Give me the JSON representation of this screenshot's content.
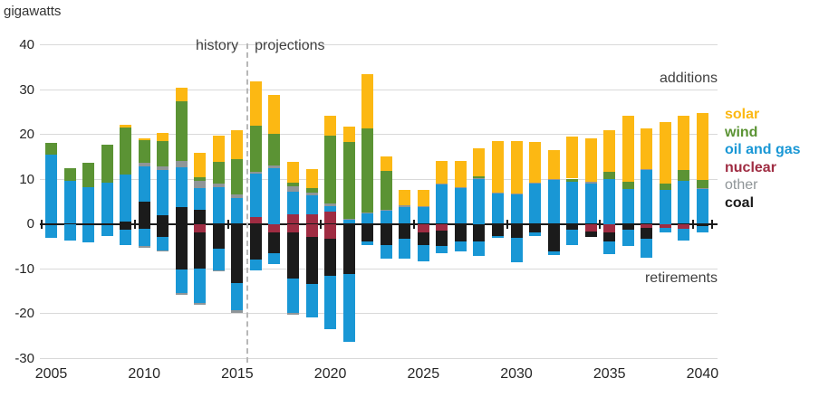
{
  "unit_label": "gigawatts",
  "annotations": {
    "history": "history",
    "projections": "projections",
    "additions": "additions",
    "retirements": "retirements"
  },
  "legend": [
    {
      "label": "solar",
      "color": "#fcb813",
      "bold": true
    },
    {
      "label": "wind",
      "color": "#5b9334",
      "bold": true
    },
    {
      "label": "oil and gas",
      "color": "#1997d5",
      "bold": true
    },
    {
      "label": "nuclear",
      "color": "#9f2c42",
      "bold": true
    },
    {
      "label": "other",
      "color": "#8f9598",
      "bold": false
    },
    {
      "label": "coal",
      "color": "#1b1b1b",
      "bold": true
    }
  ],
  "chart_data": {
    "type": "bar",
    "stacked": true,
    "title": "",
    "ylabel": "gigawatts",
    "ylim": [
      -30,
      40
    ],
    "y_ticks": [
      40,
      30,
      20,
      10,
      0,
      -10,
      -20,
      -30
    ],
    "x_start_year": 2005,
    "x_end_year": 2040,
    "x_tick_labels": [
      "2005",
      "2010",
      "2015",
      "2020",
      "2025",
      "2030",
      "2035",
      "2040"
    ],
    "history_projection_boundary": 2015.5,
    "series_colors": {
      "coal": "#1b1b1b",
      "nuclear": "#9f2c42",
      "oil_and_gas": "#1997d5",
      "other": "#8f9598",
      "wind": "#5b9334",
      "solar": "#fcb813"
    },
    "additions_stack_order": [
      "coal",
      "nuclear",
      "oil_and_gas",
      "other",
      "wind",
      "solar"
    ],
    "retirements_stack_order": [
      "nuclear",
      "coal",
      "oil_and_gas",
      "other"
    ],
    "additions": {
      "coal": [
        0,
        0,
        0,
        0,
        0.5,
        5,
        2,
        3.7,
        3.2,
        0,
        0,
        0,
        0,
        0,
        0,
        0,
        0,
        0,
        0,
        0,
        0,
        0,
        0,
        0,
        0,
        0,
        0,
        0,
        0,
        0,
        0,
        0,
        0,
        0,
        0,
        0
      ],
      "nuclear": [
        0,
        0,
        0,
        0,
        0,
        0,
        0,
        0,
        0,
        0,
        0,
        1.5,
        0,
        2.2,
        2.2,
        2.8,
        0,
        0,
        0,
        0,
        0,
        0,
        0,
        0,
        0,
        0,
        0,
        0,
        0,
        0,
        0,
        0,
        0,
        0,
        0,
        0
      ],
      "oil_and_gas": [
        15.5,
        9.5,
        8.1,
        9.2,
        10.5,
        7.8,
        10,
        9,
        4.8,
        8.1,
        5.8,
        9.7,
        12.5,
        5,
        4.2,
        1.2,
        1,
        2.3,
        3,
        3.8,
        3.7,
        8.7,
        7.9,
        10,
        6.7,
        6.5,
        9,
        9.7,
        9.3,
        9,
        10,
        7.7,
        12,
        7.5,
        9.5,
        7.8
      ],
      "other": [
        0,
        0,
        0,
        0,
        0,
        0.9,
        0.8,
        1.3,
        1.5,
        0.9,
        0.7,
        0.5,
        0.5,
        1.2,
        0.5,
        0.6,
        0.2,
        0.2,
        0.2,
        0.4,
        0.3,
        0.2,
        0.2,
        0.2,
        0.2,
        0.2,
        0.2,
        0.2,
        0,
        0.3,
        0,
        0,
        0.3,
        0,
        0,
        0.2
      ],
      "wind": [
        2.5,
        3,
        5.5,
        8.5,
        10.6,
        5,
        5.7,
        13.3,
        0.9,
        4.9,
        7.9,
        10.2,
        7.1,
        0.8,
        1,
        15,
        17,
        18.8,
        8.6,
        0,
        0,
        0,
        0,
        0.4,
        0,
        0,
        0,
        0,
        0.8,
        0,
        1.7,
        1.7,
        0,
        1.5,
        2.5,
        1.7
      ],
      "solar": [
        0,
        0,
        0,
        0,
        0.5,
        0.3,
        1.9,
        3.2,
        5.5,
        5.8,
        6.5,
        10,
        8.7,
        4.6,
        4.3,
        4.6,
        3.6,
        12.2,
        3.3,
        3.3,
        3.5,
        5.2,
        6,
        6.2,
        11.6,
        11.8,
        9.1,
        6.6,
        9.4,
        9.7,
        9.3,
        14.7,
        9,
        13.7,
        12.1,
        15.1
      ]
    },
    "retirements": {
      "nuclear": [
        0,
        0,
        0,
        0,
        0,
        0,
        0,
        0,
        -2,
        0,
        0,
        0,
        -2,
        -2,
        -3,
        -3.3,
        0,
        0,
        0,
        0,
        -1.9,
        -1.5,
        0,
        0,
        0,
        0,
        0,
        0,
        0,
        -1.7,
        -2,
        0,
        -1,
        -1,
        -1.2,
        0
      ],
      "coal": [
        -0.3,
        0,
        -0.3,
        -0.4,
        -1.3,
        -1.2,
        -3,
        -10.3,
        -8,
        -5.5,
        -13.3,
        -8,
        -4.5,
        -10.3,
        -10.5,
        -8.3,
        -11.3,
        -4,
        -4.7,
        -3.3,
        -2.8,
        -3.4,
        -4,
        -3.9,
        -2.8,
        -3.2,
        -1.9,
        -6.2,
        -1.3,
        -1.3,
        -2,
        -1.3,
        -2.3,
        0,
        0,
        -0.5
      ],
      "oil_and_gas": [
        -2.9,
        -3.7,
        -3.9,
        -2.4,
        -3.4,
        -3.8,
        -3,
        -5.1,
        -7.7,
        -4.9,
        -6,
        -2.5,
        -2.5,
        -7.5,
        -7.5,
        -12,
        -15,
        -0.8,
        -3,
        -4.4,
        -3.6,
        -1.6,
        -2.1,
        -3.3,
        -0.4,
        -5.3,
        -0.9,
        -0.8,
        -3.4,
        0,
        -2.7,
        -3.7,
        -4.3,
        -1,
        -2.5,
        -1.5
      ],
      "other": [
        0,
        0,
        0,
        0,
        0,
        -0.3,
        -0.2,
        -0.5,
        -0.3,
        -0.2,
        -0.7,
        0,
        0,
        -0.5,
        0,
        0,
        0,
        0,
        0,
        0,
        0,
        0,
        0,
        0,
        0,
        0,
        0,
        0,
        0,
        0,
        0,
        0,
        0,
        0,
        0,
        0
      ]
    }
  }
}
